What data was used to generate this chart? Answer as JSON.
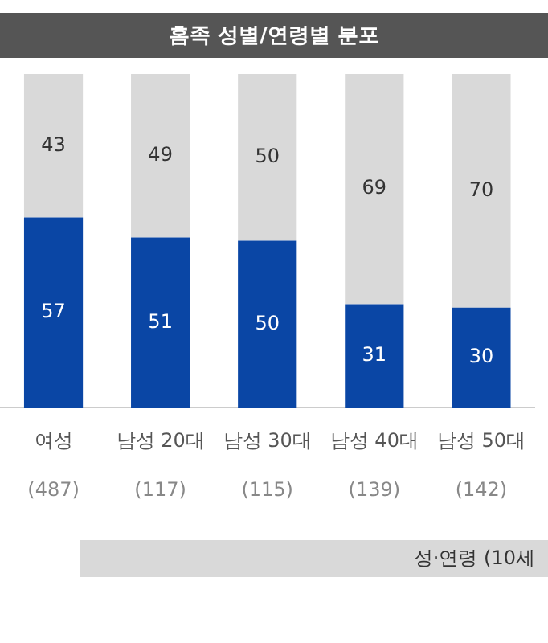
{
  "chart_data": {
    "type": "bar",
    "title": "홈족 성별/연령별 분포",
    "categories": [
      "여성",
      "남성 20대",
      "남성 30대",
      "남성 40대",
      "남성 50대"
    ],
    "stacked": true,
    "data_labels": true,
    "legend": false,
    "grid": false,
    "tick_labels": "x",
    "ylim": [
      0,
      100
    ],
    "series": [
      {
        "color": "#0a46a5",
        "values": [
          57,
          51,
          50,
          31,
          30
        ]
      },
      {
        "color": "#d9d9d9",
        "values": [
          43,
          49,
          50,
          69,
          70
        ]
      }
    ],
    "annotations": [
      "(487)",
      "(117)",
      "(115)",
      "(139)",
      "(142)",
      "성·연령 (10세"
    ]
  }
}
